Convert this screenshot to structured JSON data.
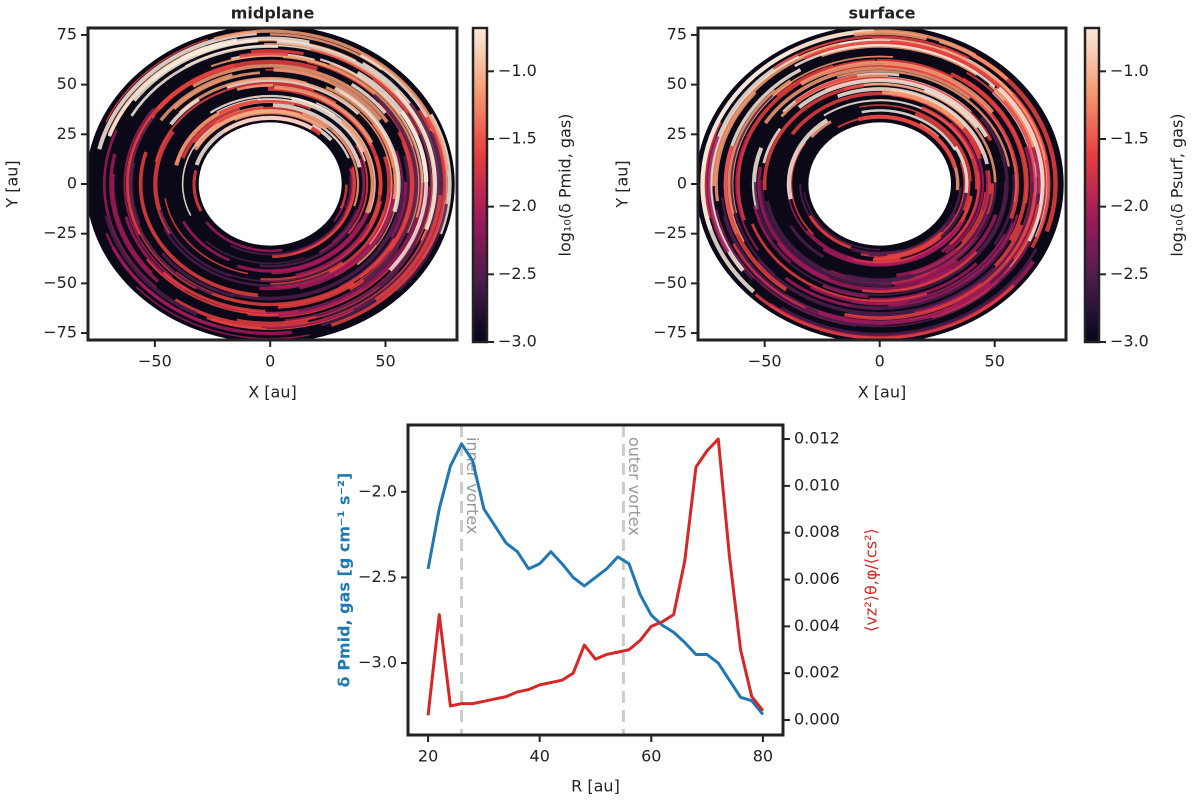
{
  "chart_data": [
    {
      "type": "disk-map",
      "title": "midplane",
      "xlabel": "X [au]",
      "ylabel": "Y [au]",
      "xlim": [
        -79,
        81
      ],
      "ylim": [
        -78.5,
        78.5
      ],
      "xticks": [
        {
          "value": -50,
          "label": "−50"
        },
        0,
        50
      ],
      "yticks": [
        {
          "value": -75,
          "label": "−75"
        },
        {
          "value": -50,
          "label": "−50"
        },
        {
          "value": -25,
          "label": "−25"
        },
        0,
        25,
        50,
        75
      ],
      "colorbar_label": "log₁₀(δ Pmid, gas)",
      "clim": [
        -3.0,
        -0.68
      ],
      "cticks": [
        {
          "value": -3.0,
          "label": "−3.0"
        },
        {
          "value": -2.5,
          "label": "−2.5"
        },
        {
          "value": -2.0,
          "label": "−2.0"
        },
        {
          "value": -1.5,
          "label": "−1.5"
        },
        {
          "value": -1.0,
          "label": "−1.0"
        }
      ]
    },
    {
      "type": "disk-map",
      "title": "surface",
      "xlabel": "X [au]",
      "ylabel": "Y [au]",
      "xlim": [
        -79,
        81
      ],
      "ylim": [
        -78.5,
        78.5
      ],
      "xticks": [
        {
          "value": -50,
          "label": "−50"
        },
        0,
        50
      ],
      "yticks": [
        {
          "value": -75,
          "label": "−75"
        },
        {
          "value": -50,
          "label": "−50"
        },
        {
          "value": -25,
          "label": "−25"
        },
        0,
        25,
        50,
        75
      ],
      "colorbar_label": "log₁₀(δ Psurf, gas)",
      "clim": [
        -3.0,
        -0.68
      ],
      "cticks": [
        {
          "value": -3.0,
          "label": "−3.0"
        },
        {
          "value": -2.5,
          "label": "−2.5"
        },
        {
          "value": -2.0,
          "label": "−2.0"
        },
        {
          "value": -1.5,
          "label": "−1.5"
        },
        {
          "value": -1.0,
          "label": "−1.0"
        }
      ]
    },
    {
      "type": "line",
      "xlabel": "R [au]",
      "ylabel": "δ Pmid, gas [g cm⁻¹ s⁻²]",
      "y2label": "⟨vz²⟩θ,φ/⟨cs²⟩",
      "xlim": [
        16.4,
        83.6
      ],
      "ylim": [
        -3.42,
        -1.61
      ],
      "y2lim": [
        -0.00064,
        0.0126
      ],
      "xticks": [
        20,
        40,
        60,
        80
      ],
      "yticks": [
        {
          "value": -3.0,
          "label": "−3.0"
        },
        {
          "value": -2.5,
          "label": "−2.5"
        },
        {
          "value": -2.0,
          "label": "−2.0"
        }
      ],
      "y2ticks": [
        {
          "value": 0,
          "label": "0.000"
        },
        {
          "value": 0.002,
          "label": "0.002"
        },
        {
          "value": 0.004,
          "label": "0.004"
        },
        {
          "value": 0.006,
          "label": "0.006"
        },
        {
          "value": 0.008,
          "label": "0.008"
        },
        {
          "value": 0.01,
          "label": "0.010"
        },
        {
          "value": 0.012,
          "label": "0.012"
        }
      ],
      "vlines": [
        {
          "x": 26,
          "label": "inner vortex"
        },
        {
          "x": 55,
          "label": "outer vortex"
        }
      ],
      "x": [
        20,
        22,
        24,
        26,
        28,
        30,
        32,
        34,
        36,
        38,
        40,
        42,
        44,
        46,
        48,
        50,
        52,
        54,
        56,
        58,
        60,
        62,
        64,
        66,
        68,
        70,
        72,
        74,
        76,
        78,
        80
      ],
      "series": [
        {
          "color": "#1f77b4",
          "values": [
            -2.45,
            -2.1,
            -1.85,
            -1.72,
            -1.82,
            -2.1,
            -2.2,
            -2.3,
            -2.35,
            -2.45,
            -2.42,
            -2.35,
            -2.42,
            -2.5,
            -2.55,
            -2.5,
            -2.45,
            -2.38,
            -2.42,
            -2.6,
            -2.72,
            -2.78,
            -2.82,
            -2.88,
            -2.95,
            -2.95,
            -3.0,
            -3.1,
            -3.2,
            -3.22,
            -3.3
          ]
        },
        {
          "color": "#d62728",
          "axis": "y2",
          "values": [
            0.0002,
            0.0045,
            0.0006,
            0.0007,
            0.0007,
            0.0008,
            0.0009,
            0.001,
            0.0012,
            0.0013,
            0.0015,
            0.0016,
            0.0017,
            0.002,
            0.0032,
            0.0026,
            0.0028,
            0.0029,
            0.003,
            0.0034,
            0.004,
            0.0042,
            0.0045,
            0.0068,
            0.0108,
            0.0115,
            0.012,
            0.007,
            0.003,
            0.001,
            0.0004
          ]
        }
      ]
    }
  ]
}
